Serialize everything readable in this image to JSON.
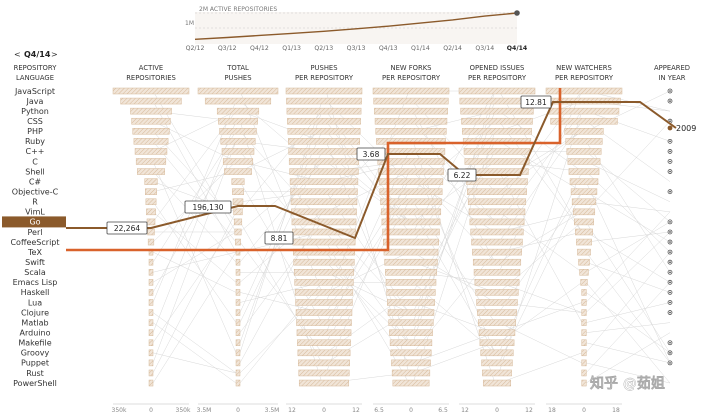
{
  "timeline": {
    "label": "2M ACTIVE REPOSITORIES",
    "label_1m": "1M",
    "quarters": [
      "Q2/12",
      "Q3/12",
      "Q4/12",
      "Q1/13",
      "Q2/13",
      "Q3/13",
      "Q4/13",
      "Q1/14",
      "Q2/14",
      "Q3/14",
      "Q4/14"
    ],
    "values": [
      0.3,
      0.42,
      0.55,
      0.68,
      0.82,
      0.98,
      1.15,
      1.35,
      1.55,
      1.8,
      2.0
    ],
    "selected_quarter": "Q4/14"
  },
  "quarter_nav": {
    "prev": "<",
    "label": "Q4/14",
    "next": ">"
  },
  "columns": [
    {
      "title1": "REPOSITORY",
      "title2": "LANGUAGE"
    },
    {
      "title1": "ACTIVE",
      "title2": "REPOSITORIES",
      "axis": [
        "350k",
        "0",
        "350k"
      ]
    },
    {
      "title1": "TOTAL",
      "title2": "PUSHES",
      "axis": [
        "3.5M",
        "0",
        "3.5M"
      ]
    },
    {
      "title1": "PUSHES",
      "title2": "PER REPOSITORY",
      "axis": [
        "12",
        "0",
        "12"
      ]
    },
    {
      "title1": "NEW FORKS",
      "title2": "PER REPOSITORY",
      "axis": [
        "6.5",
        "0",
        "6.5"
      ]
    },
    {
      "title1": "OPENED ISSUES",
      "title2": "PER REPOSITORY",
      "axis": [
        "12",
        "0",
        "12"
      ]
    },
    {
      "title1": "NEW WATCHERS",
      "title2": "PER REPOSITORY",
      "axis": [
        "18",
        "0",
        "18"
      ]
    },
    {
      "title1": "APPEARED",
      "title2": "IN YEAR"
    }
  ],
  "languages": [
    "JavaScript",
    "Java",
    "Python",
    "CSS",
    "PHP",
    "Ruby",
    "C++",
    "C",
    "Shell",
    "C#",
    "Objective-C",
    "R",
    "VimL",
    "Go",
    "Perl",
    "CoffeeScript",
    "TeX",
    "Swift",
    "Scala",
    "Emacs Lisp",
    "Haskell",
    "Lua",
    "Clojure",
    "Matlab",
    "Arduino",
    "Makefile",
    "Groovy",
    "Puppet",
    "Rust",
    "PowerShell"
  ],
  "selected": {
    "language": "Go",
    "active_repositories": "22,264",
    "total_pushes": "196,130",
    "pushes_per_repository": "8.81",
    "new_forks_per_repository": "3.68",
    "opened_issues_per_repository": "6.22",
    "new_watchers_per_repository": "12.81",
    "appeared_in_year": "2009"
  },
  "watermark": "知乎 @茹姐",
  "colors": {
    "accent": "#8b5a2b",
    "highlight": "#d9622b",
    "bar_fill": "#f1e5d8",
    "bar_stroke": "#d6b99a"
  },
  "chart_data": {
    "type": "parallel-coordinates",
    "selected_language": "Go",
    "selected_values": {
      "active_repositories": 22264,
      "total_pushes": 196130,
      "pushes_per_repository": 8.81,
      "new_forks_per_repository": 3.68,
      "opened_issues_per_repository": 6.22,
      "new_watchers_per_repository": 12.81,
      "appeared_in_year": 2009
    }
  }
}
